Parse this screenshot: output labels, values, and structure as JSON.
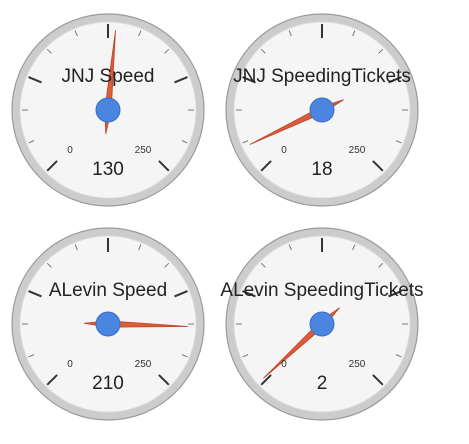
{
  "chart_data": [
    {
      "type": "gauge",
      "title": "JNJ Speed",
      "value": 130,
      "value_label": "130",
      "min": 0,
      "max": 250,
      "min_label": "0",
      "max_label": "250"
    },
    {
      "type": "gauge",
      "title": "JNJ SpeedingTickets",
      "value": 18,
      "value_label": "18",
      "min": 0,
      "max": 250,
      "min_label": "0",
      "max_label": "250"
    },
    {
      "type": "gauge",
      "title": "ALevin Speed",
      "value": 210,
      "value_label": "210",
      "min": 0,
      "max": 250,
      "min_label": "0",
      "max_label": "250"
    },
    {
      "type": "gauge",
      "title": "ALevin SpeedingTickets",
      "value": 2,
      "value_label": "2",
      "min": 0,
      "max": 250,
      "min_label": "0",
      "max_label": "250"
    }
  ],
  "colors": {
    "needle": "#dc5b3a",
    "needle_stroke": "#b8452a",
    "hub": "#4a86e0",
    "hub_stroke": "#3a6fc0",
    "face": "#f5f5f5",
    "rim": "#cccccc",
    "rim_stroke": "#9a9a9a",
    "tick": "#333333"
  }
}
